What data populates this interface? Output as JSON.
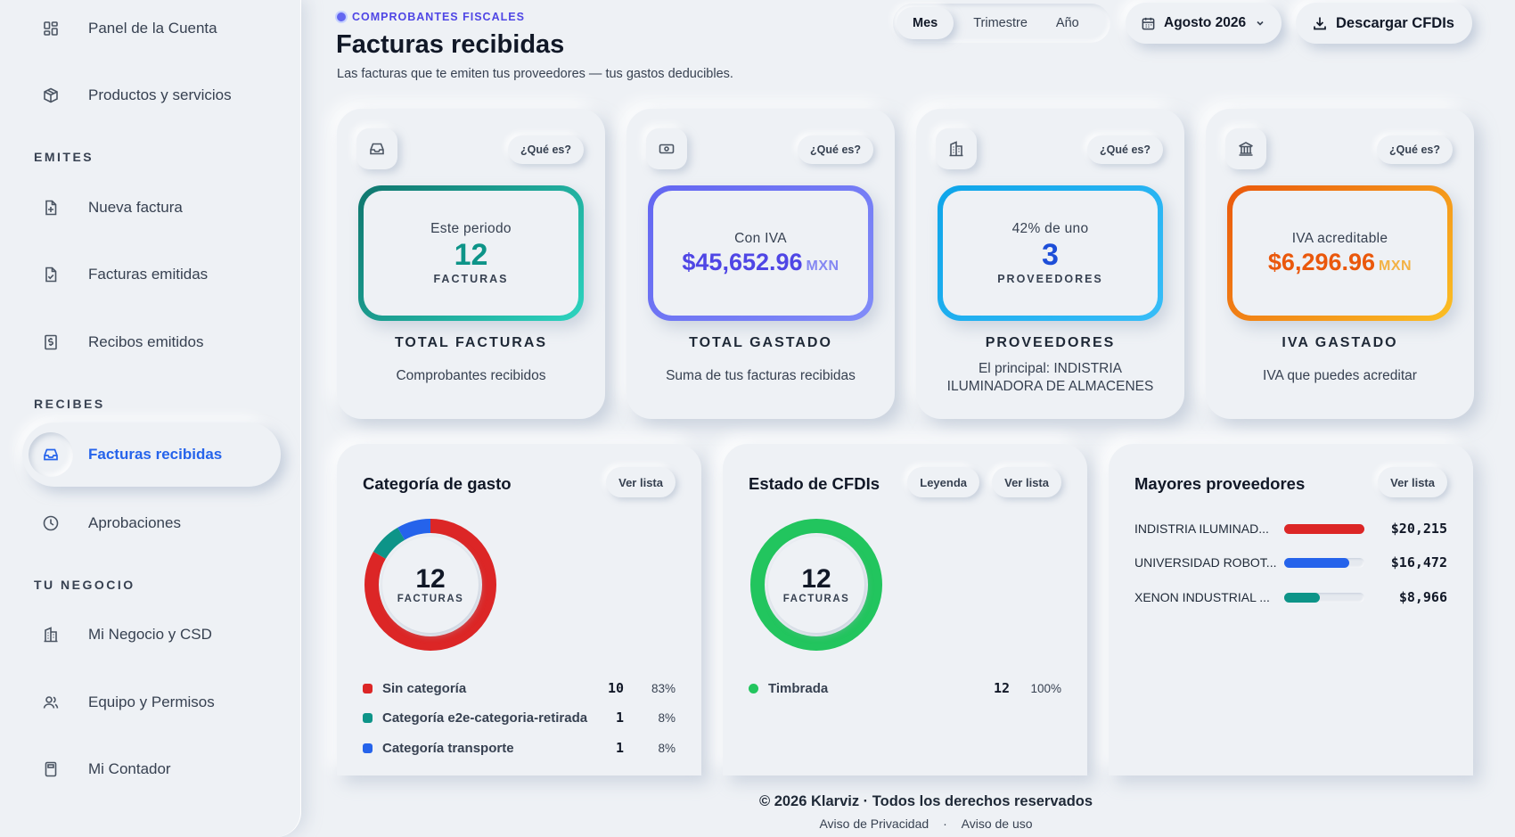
{
  "sidebar": {
    "items_top": [
      {
        "label": "Panel de la Cuenta",
        "icon": "dashboard-icon"
      },
      {
        "label": "Productos y servicios",
        "icon": "package-icon"
      }
    ],
    "sections": [
      "EMITES",
      "RECIBES",
      "TU NEGOCIO"
    ],
    "emites": [
      {
        "label": "Nueva factura",
        "icon": "file-plus-icon"
      },
      {
        "label": "Facturas emitidas",
        "icon": "file-check-icon"
      },
      {
        "label": "Recibos emitidos",
        "icon": "receipt-dollar-icon"
      }
    ],
    "recibes": [
      {
        "label": "Facturas recibidas",
        "icon": "inbox-icon",
        "active": true
      },
      {
        "label": "Aprobaciones",
        "icon": "clock-icon"
      }
    ],
    "negocio": [
      {
        "label": "Mi Negocio y CSD",
        "icon": "building-icon"
      },
      {
        "label": "Equipo y Permisos",
        "icon": "users-icon"
      },
      {
        "label": "Mi Contador",
        "icon": "calculator-icon"
      }
    ]
  },
  "header": {
    "eyebrow": "COMPROBANTES FISCALES",
    "title": "Facturas recibidas",
    "subtitle": "Las facturas que te emiten tus proveedores — tus gastos deducibles.",
    "period_options": [
      "Mes",
      "Trimestre",
      "Año"
    ],
    "period_selected": "Mes",
    "date_label": "Agosto 2026",
    "download_label": "Descargar CFDIs"
  },
  "stats": [
    {
      "icon": "inbox-icon",
      "help": "¿Qué es?",
      "pre": "Este periodo",
      "value": "12",
      "unit": "FACTURAS",
      "title": "TOTAL FACTURAS",
      "desc": "Comprobantes recibidos",
      "color": "#0d9488"
    },
    {
      "icon": "banknote-icon",
      "help": "¿Qué es?",
      "pre": "Con IVA",
      "value": "$45,652.96",
      "currency": "MXN",
      "title": "TOTAL GASTADO",
      "desc": "Suma de tus facturas recibidas",
      "color": "#4f46e5"
    },
    {
      "icon": "building-icon",
      "help": "¿Qué es?",
      "pre": "42% de uno",
      "value": "3",
      "unit": "PROVEEDORES",
      "title": "PROVEEDORES",
      "desc": "El principal: INDISTRIA ILUMINADORA DE ALMACENES",
      "color": "#1d4ed8"
    },
    {
      "icon": "bank-icon",
      "help": "¿Qué es?",
      "pre": "IVA acreditable",
      "value": "$6,296.96",
      "currency": "MXN",
      "title": "IVA GASTADO",
      "desc": "IVA que puedes acreditar",
      "color": "#ea580c"
    }
  ],
  "categoria": {
    "title": "Categoría de gasto",
    "action": "Ver lista",
    "total": "12",
    "unit": "FACTURAS",
    "rows": [
      {
        "name": "Sin categoría",
        "count": "10",
        "pct": "83%",
        "color": "#dc2626"
      },
      {
        "name": "Categoría e2e-categoria-retirada",
        "count": "1",
        "pct": "8%",
        "color": "#0d9488"
      },
      {
        "name": "Categoría transporte",
        "count": "1",
        "pct": "8%",
        "color": "#2563eb"
      }
    ]
  },
  "estado": {
    "title": "Estado de CFDIs",
    "legend_btn": "Leyenda",
    "action": "Ver lista",
    "total": "12",
    "unit": "FACTURAS",
    "rows": [
      {
        "name": "Timbrada",
        "count": "12",
        "pct": "100%",
        "color": "#22c55e"
      }
    ]
  },
  "proveedores": {
    "title": "Mayores proveedores",
    "action": "Ver lista",
    "rows": [
      {
        "name": "INDISTRIA ILUMINAD...",
        "amount": "$20,215",
        "share": 1.0,
        "color": "#dc2626"
      },
      {
        "name": "UNIVERSIDAD ROBOT...",
        "amount": "$16,472",
        "share": 0.81,
        "color": "#2563eb"
      },
      {
        "name": "XENON INDUSTRIAL ...",
        "amount": "$8,966",
        "share": 0.44,
        "color": "#0d9488"
      }
    ]
  },
  "footer": {
    "copyright": "© 2026 Klarviz · Todos los derechos reservados",
    "privacy": "Aviso de Privacidad",
    "sep": "·",
    "terms": "Aviso de uso"
  }
}
